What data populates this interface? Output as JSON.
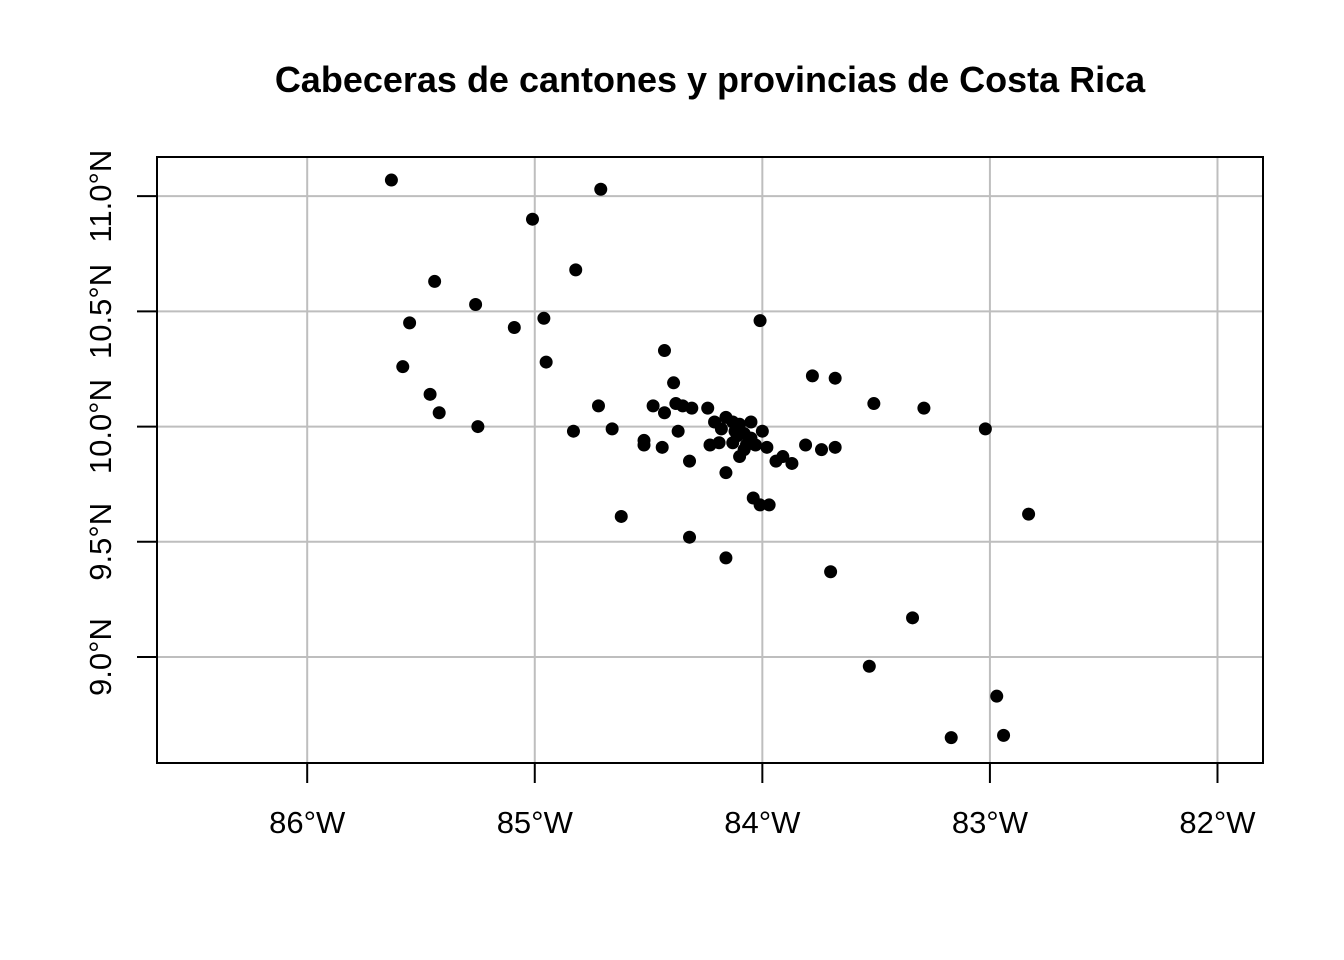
{
  "chart_data": {
    "type": "scatter",
    "title": "Cabeceras de cantones y provincias de Costa Rica",
    "xlabel": "",
    "ylabel": "",
    "xlim": [
      -86.66,
      -81.8
    ],
    "ylim": [
      8.54,
      11.17
    ],
    "grid": true,
    "x_ticks": [
      {
        "value": -86,
        "label": "86°W"
      },
      {
        "value": -85,
        "label": "85°W"
      },
      {
        "value": -84,
        "label": "84°W"
      },
      {
        "value": -83,
        "label": "83°W"
      },
      {
        "value": -82,
        "label": "82°W"
      }
    ],
    "y_ticks": [
      {
        "value": 9.0,
        "label": "9.0°N"
      },
      {
        "value": 9.5,
        "label": "9.5°N"
      },
      {
        "value": 10.0,
        "label": "10.0°N"
      },
      {
        "value": 10.5,
        "label": "10.5°N"
      },
      {
        "value": 11.0,
        "label": "11.0°N"
      }
    ],
    "points": [
      [
        -85.63,
        11.07
      ],
      [
        -84.71,
        11.03
      ],
      [
        -85.01,
        10.9
      ],
      [
        -84.82,
        10.68
      ],
      [
        -85.44,
        10.63
      ],
      [
        -85.26,
        10.53
      ],
      [
        -85.55,
        10.45
      ],
      [
        -84.96,
        10.47
      ],
      [
        -85.09,
        10.43
      ],
      [
        -84.01,
        10.46
      ],
      [
        -84.43,
        10.33
      ],
      [
        -85.58,
        10.26
      ],
      [
        -84.95,
        10.28
      ],
      [
        -83.78,
        10.22
      ],
      [
        -83.68,
        10.21
      ],
      [
        -84.39,
        10.19
      ],
      [
        -85.46,
        10.14
      ],
      [
        -84.72,
        10.09
      ],
      [
        -84.48,
        10.09
      ],
      [
        -84.38,
        10.1
      ],
      [
        -84.35,
        10.09
      ],
      [
        -84.31,
        10.08
      ],
      [
        -84.24,
        10.08
      ],
      [
        -83.51,
        10.1
      ],
      [
        -83.29,
        10.08
      ],
      [
        -85.42,
        10.06
      ],
      [
        -84.43,
        10.06
      ],
      [
        -84.16,
        10.04
      ],
      [
        -84.21,
        10.02
      ],
      [
        -84.13,
        10.02
      ],
      [
        -84.1,
        10.01
      ],
      [
        -84.05,
        10.02
      ],
      [
        -83.02,
        9.99
      ],
      [
        -85.25,
        10.0
      ],
      [
        -84.66,
        9.99
      ],
      [
        -84.83,
        9.98
      ],
      [
        -84.37,
        9.98
      ],
      [
        -84.18,
        9.99
      ],
      [
        -84.12,
        9.98
      ],
      [
        -84.08,
        9.97
      ],
      [
        -84.0,
        9.98
      ],
      [
        -84.05,
        9.95
      ],
      [
        -84.11,
        9.96
      ],
      [
        -84.52,
        9.94
      ],
      [
        -84.52,
        9.92
      ],
      [
        -84.44,
        9.91
      ],
      [
        -84.23,
        9.92
      ],
      [
        -84.19,
        9.93
      ],
      [
        -84.13,
        9.93
      ],
      [
        -84.07,
        9.92
      ],
      [
        -84.03,
        9.92
      ],
      [
        -83.98,
        9.91
      ],
      [
        -83.81,
        9.92
      ],
      [
        -83.68,
        9.91
      ],
      [
        -83.74,
        9.9
      ],
      [
        -84.08,
        9.9
      ],
      [
        -84.1,
        9.87
      ],
      [
        -83.91,
        9.87
      ],
      [
        -83.94,
        9.85
      ],
      [
        -83.87,
        9.84
      ],
      [
        -84.32,
        9.85
      ],
      [
        -84.16,
        9.8
      ],
      [
        -84.04,
        9.69
      ],
      [
        -84.01,
        9.66
      ],
      [
        -83.97,
        9.66
      ],
      [
        -84.62,
        9.61
      ],
      [
        -82.83,
        9.62
      ],
      [
        -84.32,
        9.52
      ],
      [
        -84.16,
        9.43
      ],
      [
        -83.7,
        9.37
      ],
      [
        -83.34,
        9.17
      ],
      [
        -83.53,
        8.96
      ],
      [
        -82.97,
        8.83
      ],
      [
        -83.17,
        8.65
      ],
      [
        -82.94,
        8.66
      ]
    ]
  }
}
